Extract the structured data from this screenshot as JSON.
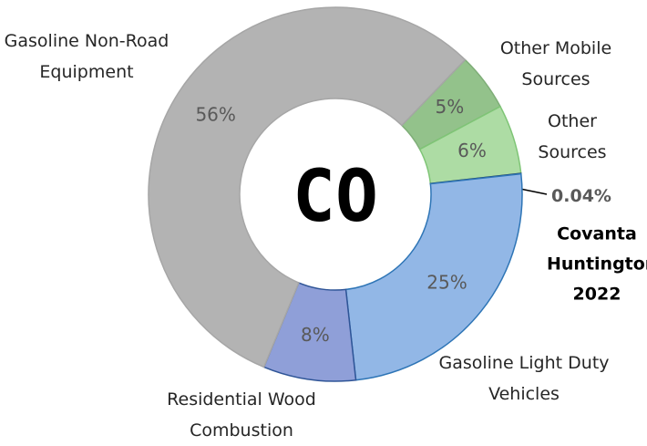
{
  "chart_data": {
    "type": "donut",
    "center_label": "CO",
    "categories": [
      "Other Mobile Sources",
      "Other Sources",
      "Covanta Huntington 2022",
      "Gasoline Light Duty Vehicles",
      "Residential Wood Combustion",
      "Gasoline Non-Road Equipment"
    ],
    "values": [
      5,
      6,
      0.04,
      25,
      8,
      56
    ],
    "value_labels": [
      "5%",
      "6%",
      "0.04%",
      "25%",
      "8%",
      "56%"
    ],
    "colors": [
      "#93c28b",
      "#addca4",
      "#1f3864",
      "#92b7e6",
      "#8f9fd8",
      "#b3b3b3"
    ]
  }
}
